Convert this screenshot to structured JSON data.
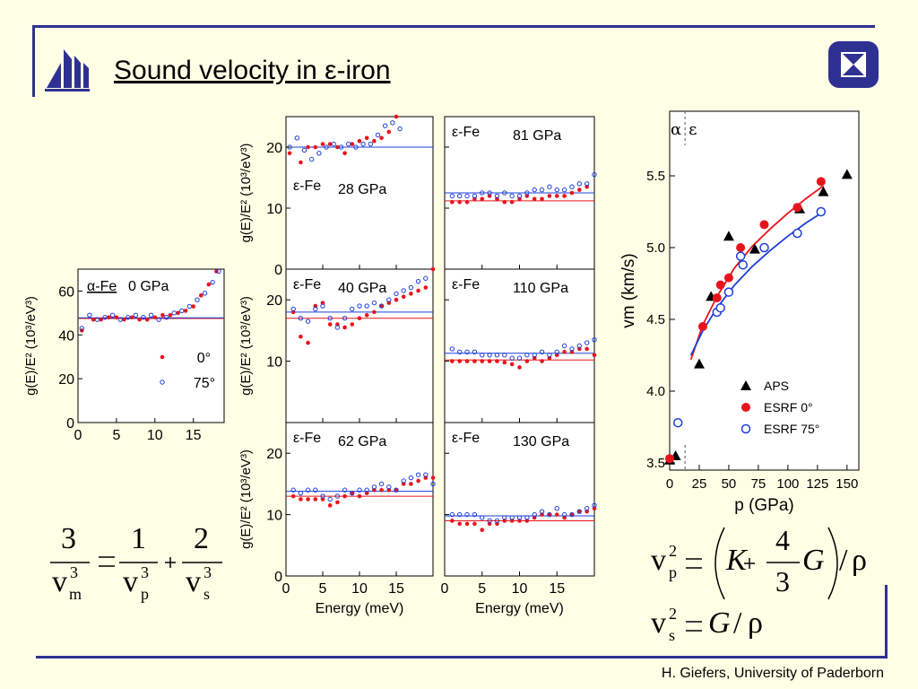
{
  "slide": {
    "title": "Sound velocity in ε-iron",
    "footer": "H. Giefers, University of Paderborn",
    "colors": {
      "frame": "#2e3192",
      "red": "#e8141c",
      "blue": "#1d3fd8",
      "background": "#ffffe6"
    },
    "logo_icon": "university-logo-icon",
    "corner_icon": "hourglass-badge-icon"
  },
  "dos_axis": {
    "ylabel": "g(E)/E² (10³/eV³)",
    "xlabel": "Energy (meV)",
    "x_ticks": [
      "0",
      "5",
      "10",
      "15"
    ]
  },
  "equations": {
    "mean_velocity": {
      "lhs_num": "3",
      "lhs_den": "v",
      "lhs_den_sub": "m",
      "lhs_den_sup": "3",
      "t1_num": "1",
      "t1_den": "v",
      "t1_sub": "p",
      "t1_sup": "3",
      "t2_num": "2",
      "t2_den": "v",
      "t2_sub": "s",
      "t2_sup": "3"
    },
    "p_velocity": {
      "v": "v",
      "sub": "p",
      "sup": "2",
      "K": "K",
      "num": "4",
      "den": "3",
      "G": "G",
      "rho": "ρ"
    },
    "s_velocity": {
      "v": "v",
      "sub": "s",
      "sup": "2",
      "G": "G",
      "rho": "ρ"
    }
  },
  "chart_data": [
    {
      "type": "scatter",
      "id": "dos-0gpa",
      "phase": "α-Fe",
      "pressure": "0 GPa",
      "xlim": [
        0,
        19
      ],
      "ylim": [
        0,
        70
      ],
      "y_ticks": [
        0,
        20,
        40,
        60
      ],
      "legend": [
        "0°",
        "75°"
      ],
      "fit_red": 47.5,
      "fit_blue": 47.8,
      "series": [
        {
          "name": "0°",
          "x": [
            0.5,
            2,
            3,
            4,
            5,
            6,
            7,
            8,
            9,
            10,
            11,
            12,
            13,
            14,
            15,
            16,
            17,
            18
          ],
          "y": [
            42,
            47,
            47,
            48,
            48,
            47,
            48,
            47,
            47,
            48,
            49,
            49,
            50,
            51,
            53,
            58,
            63,
            69
          ]
        },
        {
          "name": "75°",
          "x": [
            0.5,
            1.5,
            2.5,
            3.5,
            4.5,
            5.5,
            6.5,
            7.5,
            8.5,
            9.5,
            10.5,
            11.5,
            12.5,
            13.5,
            14.5,
            15.5,
            16.5,
            17.5,
            18.3
          ],
          "y": [
            43,
            49,
            47,
            48,
            49,
            47,
            48,
            49,
            48,
            49,
            47,
            48,
            50,
            51,
            53,
            56,
            59,
            64,
            69
          ]
        }
      ]
    },
    {
      "type": "scatter",
      "id": "dos-28gpa",
      "phase": "ε-Fe",
      "pressure": "28 GPa",
      "xlim": [
        0,
        20
      ],
      "ylim": [
        0,
        25
      ],
      "y_ticks": [
        0,
        10,
        20
      ],
      "fit_red": 20.0,
      "fit_blue": 20.0,
      "series": [
        {
          "name": "0°",
          "x": [
            0.5,
            2,
            3,
            4,
            5,
            6,
            7,
            8,
            9,
            10,
            11,
            12,
            13,
            14,
            15
          ],
          "y": [
            19,
            17.5,
            20,
            20,
            20.5,
            20.5,
            20,
            19,
            20.5,
            21,
            21.5,
            21,
            21.5,
            22.5,
            25
          ]
        },
        {
          "name": "75°",
          "x": [
            0.5,
            1.5,
            2.5,
            3.5,
            4.5,
            5.5,
            6.5,
            7.5,
            8.5,
            9.5,
            10.5,
            11.5,
            12.5,
            13.5,
            14.5,
            15.5
          ],
          "y": [
            20,
            21.5,
            19.5,
            18,
            19,
            20,
            20.5,
            20,
            20.5,
            20,
            20.5,
            20.5,
            22,
            23.5,
            24,
            23
          ]
        }
      ]
    },
    {
      "type": "scatter",
      "id": "dos-81gpa",
      "phase": "ε-Fe",
      "pressure": "81 GPa",
      "xlim": [
        0,
        20
      ],
      "ylim": [
        0,
        25
      ],
      "y_ticks": [
        0,
        10,
        20
      ],
      "fit_red": 11.2,
      "fit_blue": 12.5,
      "series": [
        {
          "name": "0°",
          "x": [
            1,
            2,
            3,
            4,
            5,
            6,
            7,
            8,
            9,
            10,
            11,
            12,
            13,
            14,
            15,
            16,
            17,
            18,
            19
          ],
          "y": [
            11,
            11,
            11,
            11.5,
            11.5,
            12,
            11.5,
            11,
            11,
            11.5,
            12,
            11.5,
            11.5,
            12,
            12,
            12,
            12.5,
            13,
            13.5
          ]
        },
        {
          "name": "75°",
          "x": [
            1,
            2,
            3,
            4,
            5,
            6,
            7,
            8,
            9,
            10,
            11,
            12,
            13,
            14,
            15,
            16,
            17,
            18,
            19,
            20
          ],
          "y": [
            12,
            12,
            12,
            12,
            12.5,
            12.5,
            12,
            12.5,
            12,
            12,
            12.5,
            13,
            13,
            13.5,
            13,
            13,
            13.5,
            14,
            14,
            15.5
          ]
        }
      ]
    },
    {
      "type": "scatter",
      "id": "dos-40gpa",
      "phase": "ε-Fe",
      "pressure": "40 GPa",
      "xlim": [
        0,
        20
      ],
      "ylim": [
        0,
        25
      ],
      "y_ticks": [
        10,
        20
      ],
      "fit_red": 17.0,
      "fit_blue": 18.0,
      "series": [
        {
          "name": "0°",
          "x": [
            1,
            2,
            3,
            4,
            5,
            6,
            7,
            8,
            9,
            10,
            11,
            12,
            13,
            14,
            15,
            16,
            17,
            18,
            19,
            20
          ],
          "y": [
            18,
            14,
            13,
            19,
            19.5,
            16,
            16,
            15.5,
            16,
            17,
            17.5,
            18,
            19,
            19.5,
            20,
            20.5,
            21,
            21.5,
            22,
            25
          ]
        },
        {
          "name": "75°",
          "x": [
            1,
            2,
            3,
            4,
            5,
            6,
            7,
            8,
            9,
            10,
            11,
            12,
            13,
            14,
            15,
            16,
            17,
            18,
            19
          ],
          "y": [
            18.5,
            17,
            16.5,
            18.5,
            19,
            17,
            15.5,
            17,
            18.5,
            19,
            19,
            19.5,
            19,
            20,
            21,
            21.5,
            22,
            23,
            23.5
          ]
        }
      ]
    },
    {
      "type": "scatter",
      "id": "dos-110gpa",
      "phase": "ε-Fe",
      "pressure": "110 GPa",
      "xlim": [
        0,
        20
      ],
      "ylim": [
        0,
        25
      ],
      "y_ticks": [
        0,
        10,
        20
      ],
      "fit_red": 10.2,
      "fit_blue": 11.3,
      "series": [
        {
          "name": "0°",
          "x": [
            1,
            2,
            3,
            4,
            5,
            6,
            7,
            8,
            9,
            10,
            11,
            12,
            13,
            14,
            15,
            16,
            17,
            18,
            19,
            20
          ],
          "y": [
            10,
            10,
            10,
            10,
            10,
            10,
            10,
            9.8,
            9.5,
            9,
            10,
            10.5,
            10,
            10.5,
            11,
            11.5,
            11.5,
            12,
            12,
            11
          ]
        },
        {
          "name": "75°",
          "x": [
            1,
            2,
            3,
            4,
            5,
            6,
            7,
            8,
            9,
            10,
            11,
            12,
            13,
            14,
            15,
            16,
            17,
            18,
            19,
            20
          ],
          "y": [
            12,
            11.5,
            11.5,
            11.5,
            11,
            11,
            11,
            11,
            10.5,
            10.5,
            11,
            11,
            11.5,
            11,
            11.5,
            12.5,
            12,
            12.5,
            13,
            13.5
          ]
        }
      ]
    },
    {
      "type": "scatter",
      "id": "dos-62gpa",
      "phase": "ε-Fe",
      "pressure": "62 GPa",
      "xlim": [
        0,
        20
      ],
      "ylim": [
        0,
        25
      ],
      "y_ticks": [
        0,
        10,
        20
      ],
      "fit_red": 13.0,
      "fit_blue": 13.8,
      "series": [
        {
          "name": "0°",
          "x": [
            1,
            2,
            3,
            4,
            5,
            6,
            7,
            8,
            9,
            10,
            11,
            12,
            13,
            14,
            15,
            16,
            17,
            18,
            19,
            20
          ],
          "y": [
            13,
            12.5,
            12.5,
            12.5,
            12.5,
            11.5,
            12,
            13,
            13.5,
            13,
            13.5,
            14,
            14,
            14,
            14,
            15,
            15,
            15.5,
            16,
            16
          ]
        },
        {
          "name": "75°",
          "x": [
            1,
            2,
            3,
            4,
            5,
            6,
            7,
            8,
            9,
            10,
            11,
            12,
            13,
            14,
            15,
            16,
            17,
            18,
            19,
            20
          ],
          "y": [
            14,
            13.5,
            14,
            14,
            13,
            12.5,
            13,
            14,
            13.5,
            14,
            14,
            14.5,
            15,
            14.5,
            14,
            15.5,
            16,
            16.5,
            16.5,
            15
          ]
        }
      ]
    },
    {
      "type": "scatter",
      "id": "dos-130gpa",
      "phase": "ε-Fe",
      "pressure": "130 GPa",
      "xlim": [
        0,
        20
      ],
      "ylim": [
        0,
        25
      ],
      "y_ticks": [
        0,
        10,
        20
      ],
      "fit_red": 9.0,
      "fit_blue": 9.8,
      "series": [
        {
          "name": "0°",
          "x": [
            1,
            2,
            3,
            4,
            5,
            6,
            7,
            8,
            9,
            10,
            11,
            12,
            13,
            14,
            15,
            16,
            17,
            18,
            19,
            20
          ],
          "y": [
            9,
            8.5,
            8.5,
            8.5,
            7.5,
            8.5,
            8.5,
            9,
            9,
            9,
            9,
            9.5,
            10,
            10,
            10,
            9.5,
            10,
            10.5,
            10.5,
            11
          ]
        },
        {
          "name": "75°",
          "x": [
            1,
            2,
            3,
            4,
            5,
            6,
            7,
            8,
            9,
            10,
            11,
            12,
            13,
            14,
            15,
            16,
            17,
            18,
            19,
            20
          ],
          "y": [
            10,
            10,
            10,
            10,
            9.5,
            9,
            9,
            9.5,
            9.5,
            9.5,
            9.5,
            10,
            10.5,
            10,
            11,
            10,
            10,
            10.5,
            11,
            11.5
          ]
        }
      ]
    },
    {
      "type": "scatter",
      "id": "vm-vs-p",
      "xlabel": "p (GPa)",
      "ylabel": "vm (km/s)",
      "xlim": [
        0,
        160
      ],
      "ylim": [
        3.45,
        5.95
      ],
      "x_ticks": [
        0,
        25,
        50,
        75,
        100,
        125,
        150
      ],
      "y_ticks": [
        3.5,
        4.0,
        4.5,
        5.0,
        5.5
      ],
      "phase_labels": [
        "α",
        "ε"
      ],
      "transition_p": 13,
      "legend": [
        "APS",
        "ESRF 0°",
        "ESRF 75°"
      ],
      "series": [
        {
          "name": "APS",
          "marker": "triangle",
          "x": [
            0,
            5,
            25,
            35,
            50,
            72,
            110,
            130,
            150
          ],
          "y": [
            3.52,
            3.55,
            4.19,
            4.66,
            5.08,
            4.99,
            5.27,
            5.39,
            5.51
          ]
        },
        {
          "name": "ESRF 0°",
          "marker": "filled-circle",
          "x": [
            0,
            28,
            40,
            43,
            50,
            60,
            80,
            108,
            128
          ],
          "y": [
            3.53,
            4.45,
            4.65,
            4.74,
            4.79,
            5.0,
            5.16,
            5.28,
            5.46
          ]
        },
        {
          "name": "ESRF 75°",
          "marker": "open-circle",
          "x": [
            7,
            40,
            43,
            50,
            60,
            62,
            80,
            108,
            128
          ],
          "y": [
            3.78,
            4.55,
            4.58,
            4.69,
            4.94,
            4.88,
            5.0,
            5.1,
            5.25
          ]
        }
      ],
      "fit_red": {
        "x": [
          18,
          28,
          40,
          55,
          70,
          85,
          100,
          115,
          130
        ],
        "y": [
          4.22,
          4.46,
          4.66,
          4.86,
          5.01,
          5.13,
          5.24,
          5.34,
          5.43
        ]
      },
      "fit_blue": {
        "x": [
          18,
          28,
          40,
          55,
          70,
          85,
          100,
          115,
          130
        ],
        "y": [
          4.25,
          4.42,
          4.58,
          4.74,
          4.87,
          4.98,
          5.08,
          5.17,
          5.25
        ]
      }
    }
  ]
}
